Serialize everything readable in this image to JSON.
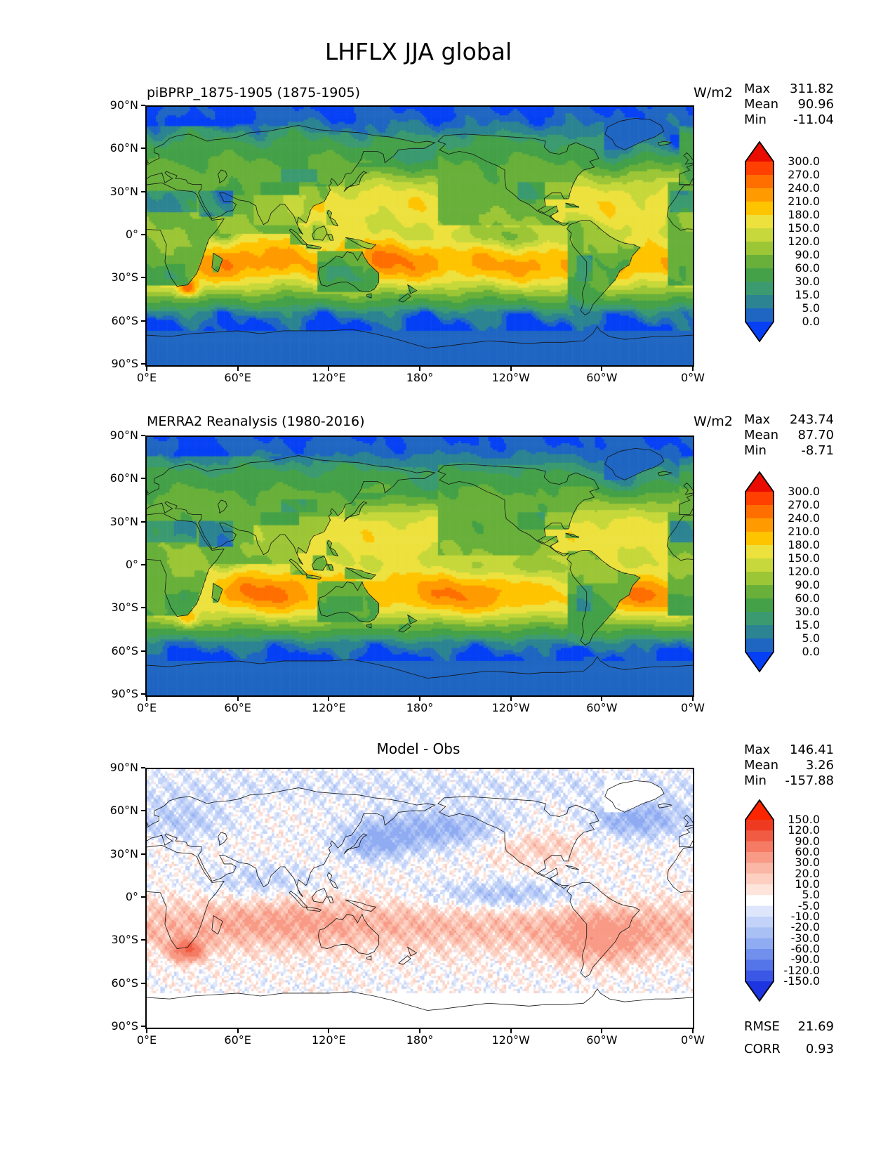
{
  "figure_title": "LHFLX JJA global",
  "axes": {
    "lat_ticks": [
      "90°N",
      "60°N",
      "30°N",
      "0°",
      "30°S",
      "60°S",
      "90°S"
    ],
    "lon_ticks": [
      "0°E",
      "60°E",
      "120°E",
      "180°",
      "120°W",
      "60°W",
      "0°W"
    ]
  },
  "panels": [
    {
      "title": "piBPRP_1875-1905 (1875-1905)",
      "units": "W/m2",
      "stats": [
        {
          "label": "Max",
          "value": "311.82"
        },
        {
          "label": "Mean",
          "value": "90.96"
        },
        {
          "label": "Min",
          "value": "-11.04"
        }
      ]
    },
    {
      "title": "MERRA2 Reanalysis (1980-2016)",
      "units": "W/m2",
      "stats": [
        {
          "label": "Max",
          "value": "243.74"
        },
        {
          "label": "Mean",
          "value": "87.70"
        },
        {
          "label": "Min",
          "value": "-8.71"
        }
      ]
    },
    {
      "title": "Model - Obs",
      "stats": [
        {
          "label": "Max",
          "value": "146.41"
        },
        {
          "label": "Mean",
          "value": "3.26"
        },
        {
          "label": "Min",
          "value": "-157.88"
        }
      ],
      "extra_stats": [
        {
          "label": "RMSE",
          "value": "21.69"
        },
        {
          "label": "CORR",
          "value": "0.93"
        }
      ]
    }
  ],
  "chart_data": [
    {
      "type": "heatmap",
      "panel": "top",
      "title": "piBPRP_1875-1905 (1875-1905)",
      "variable": "LHFLX",
      "season": "JJA",
      "region": "global",
      "units": "W/m2",
      "projection": "equirectangular",
      "lon_range_deg_east": [
        0,
        360
      ],
      "lat_range": [
        -90,
        90
      ],
      "max": 311.82,
      "mean": 90.96,
      "min": -11.04,
      "colorbar": {
        "levels": [
          0.0,
          5.0,
          15.0,
          30.0,
          60.0,
          90.0,
          120.0,
          150.0,
          180.0,
          210.0,
          240.0,
          270.0,
          300.0
        ],
        "tick_labels": [
          "300.0",
          "270.0",
          "240.0",
          "210.0",
          "180.0",
          "150.0",
          "120.0",
          "90.0",
          "60.0",
          "30.0",
          "15.0",
          "5.0",
          "0.0"
        ],
        "colors_low_to_high": [
          "#0540f5",
          "#1f66c2",
          "#2c8492",
          "#3b9a70",
          "#44a148",
          "#68b03a",
          "#9cc636",
          "#c6d83b",
          "#ede13e",
          "#ffc400",
          "#ff9b00",
          "#ff6f00",
          "#ff4000",
          "#ea0c00"
        ]
      }
    },
    {
      "type": "heatmap",
      "panel": "middle",
      "title": "MERRA2 Reanalysis (1980-2016)",
      "variable": "LHFLX",
      "season": "JJA",
      "region": "global",
      "units": "W/m2",
      "projection": "equirectangular",
      "lon_range_deg_east": [
        0,
        360
      ],
      "lat_range": [
        -90,
        90
      ],
      "max": 243.74,
      "mean": 87.7,
      "min": -8.71,
      "colorbar": {
        "levels": [
          0.0,
          5.0,
          15.0,
          30.0,
          60.0,
          90.0,
          120.0,
          150.0,
          180.0,
          210.0,
          240.0,
          270.0,
          300.0
        ],
        "tick_labels": [
          "300.0",
          "270.0",
          "240.0",
          "210.0",
          "180.0",
          "150.0",
          "120.0",
          "90.0",
          "60.0",
          "30.0",
          "15.0",
          "5.0",
          "0.0"
        ],
        "colors_low_to_high": [
          "#0540f5",
          "#1f66c2",
          "#2c8492",
          "#3b9a70",
          "#44a148",
          "#68b03a",
          "#9cc636",
          "#c6d83b",
          "#ede13e",
          "#ffc400",
          "#ff9b00",
          "#ff6f00",
          "#ff4000",
          "#ea0c00"
        ]
      }
    },
    {
      "type": "heatmap",
      "panel": "bottom",
      "title": "Model - Obs",
      "variable": "LHFLX difference",
      "season": "JJA",
      "region": "global",
      "units": "W/m2",
      "projection": "equirectangular",
      "lon_range_deg_east": [
        0,
        360
      ],
      "lat_range": [
        -90,
        90
      ],
      "max": 146.41,
      "mean": 3.26,
      "min": -157.88,
      "rmse": 21.69,
      "corr": 0.93,
      "colorbar": {
        "levels": [
          -150.0,
          -120.0,
          -90.0,
          -60.0,
          -30.0,
          -20.0,
          -10.0,
          -5.0,
          5.0,
          10.0,
          20.0,
          30.0,
          60.0,
          90.0,
          120.0,
          150.0
        ],
        "tick_labels": [
          "150.0",
          "120.0",
          "90.0",
          "60.0",
          "30.0",
          "20.0",
          "10.0",
          "5.0",
          "-5.0",
          "-10.0",
          "-20.0",
          "-30.0",
          "-60.0",
          "-90.0",
          "-120.0",
          "-150.0"
        ],
        "colors_low_to_high": [
          "#1d35e0",
          "#3b57e5",
          "#5474ea",
          "#7190ee",
          "#8fabf2",
          "#a9c0f5",
          "#c2d2f8",
          "#dde6fb",
          "#ffffff",
          "#fee5dc",
          "#fccfc1",
          "#fab7a5",
          "#f89a86",
          "#f57b64",
          "#f25b43",
          "#ef3a22",
          "#fb2500"
        ]
      }
    }
  ]
}
